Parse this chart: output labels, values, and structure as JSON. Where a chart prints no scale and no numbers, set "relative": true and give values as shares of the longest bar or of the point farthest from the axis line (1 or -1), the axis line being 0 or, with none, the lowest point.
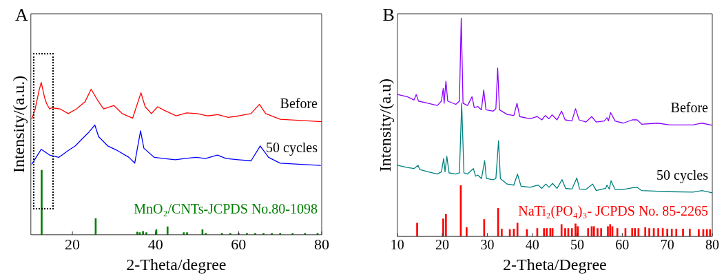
{
  "chart_data": [
    {
      "type": "line",
      "title": "A",
      "xlabel": "2-Theta/degree",
      "ylabel": "Intensity/(a.u.)",
      "xlim": [
        10,
        80
      ],
      "xticks": [
        20,
        40,
        60,
        80
      ],
      "relative": true,
      "grid": false,
      "legend": false,
      "marker": "none",
      "line_style": "solid",
      "series": [
        {
          "name": "Before",
          "color": "#ff0000",
          "x": [
            10.2,
            11.0,
            12.0,
            12.5,
            13.3,
            13.8,
            14.5,
            15.0,
            17.0,
            19.0,
            21.0,
            23.0,
            24.5,
            26.0,
            27.5,
            30.0,
            32.0,
            34.5,
            36.5,
            37.5,
            39.0,
            40.5,
            42.0,
            45.0,
            47.5,
            50.0,
            52.5,
            55.0,
            57.5,
            60.0,
            63.0,
            65.0,
            66.5,
            70.0,
            75.0,
            80.0
          ],
          "values": [
            0.758,
            0.82,
            0.95,
            1.0,
            0.9,
            0.86,
            0.826,
            0.833,
            0.826,
            0.795,
            0.826,
            0.871,
            0.955,
            0.886,
            0.826,
            0.848,
            0.795,
            0.765,
            0.932,
            0.841,
            0.795,
            0.84,
            0.818,
            0.78,
            0.8,
            0.795,
            0.78,
            0.788,
            0.77,
            0.78,
            0.795,
            0.856,
            0.795,
            0.758,
            0.75,
            0.742
          ]
        },
        {
          "name": "50 cycles",
          "color": "#0000ff",
          "x": [
            10.2,
            12.5,
            14.5,
            16.7,
            19.0,
            20.7,
            22.9,
            24.0,
            25.4,
            26.3,
            28.5,
            30.8,
            33.6,
            35.0,
            36.4,
            37.2,
            39.7,
            42.0,
            44.8,
            47.0,
            49.8,
            52.0,
            54.9,
            57.0,
            59.9,
            63.0,
            65.2,
            67.2,
            70.0,
            75.1,
            79.8
          ],
          "values": [
            0.462,
            0.561,
            0.523,
            0.508,
            0.553,
            0.583,
            0.644,
            0.674,
            0.72,
            0.644,
            0.583,
            0.553,
            0.508,
            0.47,
            0.682,
            0.568,
            0.508,
            0.5,
            0.492,
            0.5,
            0.508,
            0.5,
            0.523,
            0.5,
            0.492,
            0.485,
            0.583,
            0.508,
            0.47,
            0.462,
            0.455
          ]
        },
        {
          "type": "bar",
          "name": "MnO₂/CNTs-JCPDS No.80-1098",
          "color": "#008000",
          "x": [
            12.6,
            25.6,
            35.6,
            36.2,
            37.0,
            37.8,
            40.2,
            42.9,
            46.8,
            47.6,
            51.3,
            52.1,
            56.0,
            58.0,
            60.0,
            62.0,
            64.0,
            66.0,
            68.0,
            70.0,
            73.0,
            76.0,
            79.0
          ],
          "values": [
            0.424,
            0.106,
            0.018,
            0.015,
            0.023,
            0.015,
            0.034,
            0.053,
            0.015,
            0.015,
            0.034,
            0.01,
            0.01,
            0.01,
            0.01,
            0.01,
            0.01,
            0.01,
            0.01,
            0.01,
            0.01,
            0.01,
            0.01
          ]
        }
      ]
    },
    {
      "type": "line",
      "title": "B",
      "xlabel": "2-Theta/Degree",
      "ylabel": "Intensity/(a.u)",
      "xlim": [
        10,
        80
      ],
      "xticks": [
        10,
        20,
        30,
        40,
        50,
        60,
        70,
        80
      ],
      "relative": true,
      "grid": false,
      "legend": false,
      "marker": "none",
      "line_style": "solid",
      "series": [
        {
          "name": "Before",
          "color": "#8b00ff",
          "x": [
            10.0,
            12.2,
            13.7,
            14.2,
            14.7,
            16.8,
            18.9,
            19.8,
            20.2,
            20.4,
            20.8,
            21.2,
            23.0,
            23.8,
            24.2,
            24.6,
            25.6,
            26.6,
            27.1,
            27.9,
            28.7,
            29.2,
            29.7,
            31.3,
            31.9,
            32.3,
            32.7,
            34.4,
            35.9,
            36.6,
            37.2,
            39.5,
            41.1,
            42.1,
            42.9,
            43.7,
            44.4,
            45.5,
            46.5,
            47.3,
            48.8,
            49.6,
            50.4,
            51.9,
            53.2,
            54.2,
            56.0,
            56.6,
            56.9,
            57.4,
            58.4,
            60.2,
            62.2,
            63.3,
            64.3,
            67.9,
            70.5,
            75.7,
            77.7,
            80.0
          ],
          "values": [
            0.65,
            0.64,
            0.625,
            0.65,
            0.62,
            0.61,
            0.6,
            0.62,
            0.678,
            0.61,
            0.711,
            0.62,
            0.605,
            0.62,
            1.0,
            0.61,
            0.6,
            0.64,
            0.59,
            0.595,
            0.58,
            0.671,
            0.58,
            0.574,
            0.585,
            0.772,
            0.58,
            0.559,
            0.554,
            0.61,
            0.549,
            0.539,
            0.549,
            0.534,
            0.554,
            0.539,
            0.557,
            0.534,
            0.574,
            0.534,
            0.529,
            0.585,
            0.534,
            0.524,
            0.549,
            0.524,
            0.529,
            0.544,
            0.529,
            0.567,
            0.529,
            0.519,
            0.534,
            0.534,
            0.514,
            0.519,
            0.511,
            0.511,
            0.519,
            0.509
          ]
        },
        {
          "name": "50 cycles",
          "color": "#008080",
          "x": [
            10.0,
            12.2,
            13.7,
            14.6,
            15.0,
            16.8,
            18.9,
            19.8,
            20.3,
            20.6,
            21.0,
            21.5,
            23.0,
            23.8,
            24.3,
            24.8,
            25.6,
            26.9,
            27.4,
            27.9,
            28.7,
            29.4,
            29.8,
            31.3,
            31.9,
            32.5,
            32.9,
            34.4,
            35.9,
            36.7,
            37.5,
            39.5,
            41.3,
            42.1,
            43.0,
            43.7,
            44.5,
            45.5,
            46.6,
            47.4,
            48.8,
            49.9,
            50.5,
            51.9,
            53.4,
            54.2,
            56.3,
            56.6,
            57.1,
            57.5,
            58.4,
            60.2,
            62.2,
            63.3,
            64.3,
            67.9,
            70.5,
            75.7,
            77.7,
            80.0
          ],
          "values": [
            0.326,
            0.316,
            0.311,
            0.326,
            0.306,
            0.296,
            0.286,
            0.296,
            0.357,
            0.296,
            0.367,
            0.291,
            0.286,
            0.291,
            0.61,
            0.291,
            0.286,
            0.311,
            0.276,
            0.281,
            0.265,
            0.347,
            0.265,
            0.26,
            0.265,
            0.438,
            0.265,
            0.24,
            0.235,
            0.286,
            0.23,
            0.225,
            0.235,
            0.22,
            0.24,
            0.225,
            0.243,
            0.22,
            0.26,
            0.22,
            0.217,
            0.268,
            0.217,
            0.215,
            0.24,
            0.21,
            0.22,
            0.235,
            0.217,
            0.255,
            0.215,
            0.215,
            0.223,
            0.225,
            0.21,
            0.207,
            0.205,
            0.203,
            0.21,
            0.2
          ]
        },
        {
          "type": "bar",
          "name": "NaTi₂(PO₄)₃- JCPDS No. 85-2265",
          "color": "#ff0000",
          "x": [
            14.4,
            20.2,
            20.8,
            24.1,
            25.4,
            29.3,
            32.4,
            33.2,
            35.0,
            35.9,
            36.7,
            38.8,
            41.1,
            42.6,
            43.2,
            44.0,
            44.5,
            46.5,
            47.3,
            48.0,
            48.8,
            49.6,
            50.1,
            52.4,
            53.2,
            53.7,
            54.5,
            55.3,
            56.8,
            57.3,
            57.8,
            58.9,
            60.7,
            62.2,
            62.8,
            63.6,
            65.1,
            66.0,
            67.0,
            68.0,
            69.0,
            70.0,
            71.0,
            72.0,
            73.5,
            75.0,
            77.0,
            78.0,
            78.8,
            79.5
          ],
          "values": [
            0.061,
            0.081,
            0.101,
            0.233,
            0.041,
            0.078,
            0.129,
            0.034,
            0.032,
            0.034,
            0.061,
            0.032,
            0.037,
            0.037,
            0.037,
            0.037,
            0.037,
            0.055,
            0.037,
            0.037,
            0.037,
            0.058,
            0.045,
            0.037,
            0.045,
            0.045,
            0.037,
            0.037,
            0.045,
            0.055,
            0.045,
            0.037,
            0.037,
            0.037,
            0.037,
            0.037,
            0.041,
            0.037,
            0.037,
            0.037,
            0.037,
            0.034,
            0.034,
            0.034,
            0.034,
            0.034,
            0.032,
            0.032,
            0.032,
            0.032
          ]
        }
      ]
    }
  ]
}
